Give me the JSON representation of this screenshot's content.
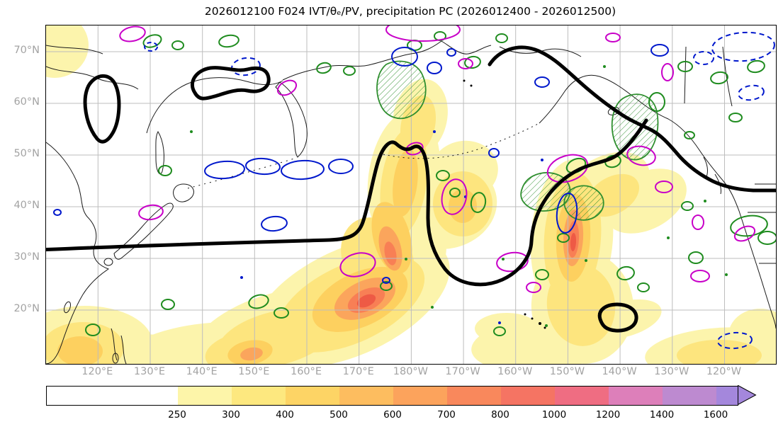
{
  "title": "2026012100 F024 IVT/θₑ/PV, precipitation PC (2026012400 - 2026012500)",
  "chart_data": {
    "type": "heatmap",
    "title": "2026012100 F024 IVT/θₑ/PV, precipitation PC (2026012400 - 2026012500)",
    "x_tick_labels": [
      "120°E",
      "130°E",
      "140°E",
      "150°E",
      "160°E",
      "170°E",
      "180°W",
      "170°W",
      "160°W",
      "150°W",
      "140°W",
      "130°W",
      "120°W"
    ],
    "y_tick_labels": [
      "70°N",
      "60°N",
      "50°N",
      "40°N",
      "30°N",
      "20°N"
    ],
    "grid": true,
    "region": "North Pacific (East Asia to western North America)",
    "colorbar": {
      "tick_labels": [
        "250",
        "300",
        "400",
        "500",
        "600",
        "700",
        "800",
        "1000",
        "1200",
        "1400",
        "1600"
      ],
      "segment_colors": [
        "#ffffff",
        "#fdf5a9",
        "#fde87f",
        "#fdd465",
        "#fdbd5f",
        "#fca35c",
        "#f9885c",
        "#f57463",
        "#ef6d82",
        "#dd7fba",
        "#bd8ad0",
        "#a487dc"
      ],
      "arrow_color": "#a487dc"
    },
    "layers": [
      {
        "name": "ivt-shading",
        "style": "filled contours",
        "palette": "white-yellow-orange-red-pink-purple"
      },
      {
        "name": "thick-black-contour",
        "color": "#000000",
        "style": "solid, very thick"
      },
      {
        "name": "green-contours",
        "color": "#1f8c1f",
        "style": "solid, some regions hatched"
      },
      {
        "name": "blue-contours",
        "color": "#0018cc",
        "style": "solid and dashed"
      },
      {
        "name": "magenta-contours",
        "color": "#c800c8",
        "style": "solid"
      }
    ]
  }
}
